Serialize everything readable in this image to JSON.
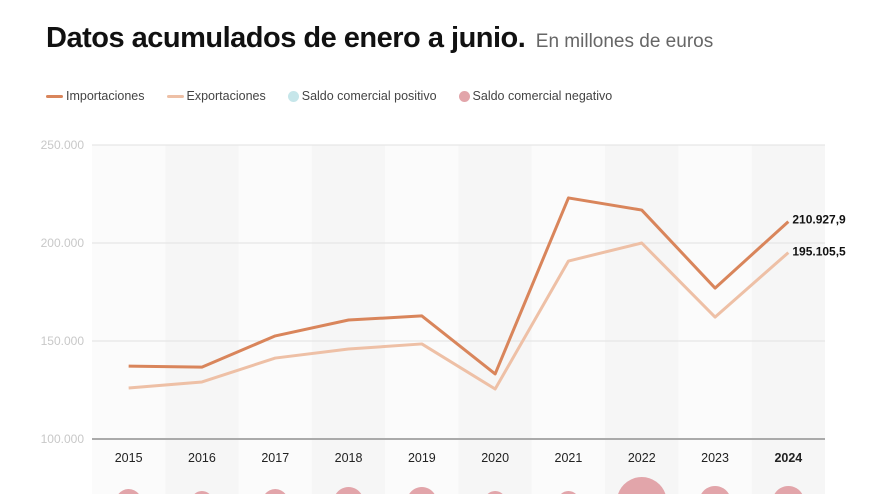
{
  "header": {
    "title": "Datos acumulados de enero a junio.",
    "subtitle": "En millones de euros"
  },
  "legend": [
    {
      "label": "Importaciones",
      "color": "#d9855b",
      "kind": "line"
    },
    {
      "label": "Exportaciones",
      "color": "#eec0a6",
      "kind": "line"
    },
    {
      "label": "Saldo comercial positivo",
      "color": "#c6e6ea",
      "kind": "dot"
    },
    {
      "label": "Saldo comercial negativo",
      "color": "#e2a5aa",
      "kind": "dot"
    }
  ],
  "chart_data": {
    "type": "line",
    "title": "",
    "categories": [
      "2015",
      "2016",
      "2017",
      "2018",
      "2019",
      "2020",
      "2021",
      "2022",
      "2023",
      "2024"
    ],
    "ylim": [
      100000,
      250000
    ],
    "yticks": [
      {
        "v": 100000,
        "label": "100.000"
      },
      {
        "v": 150000,
        "label": "150.000"
      },
      {
        "v": 200000,
        "label": "200.000"
      },
      {
        "v": 250000,
        "label": "250.000"
      }
    ],
    "grid": true,
    "series": [
      {
        "name": "Importaciones",
        "color": "#d9855b",
        "values": [
          137200,
          136700,
          152600,
          160700,
          162800,
          133200,
          223000,
          216800,
          177000,
          210927.9
        ],
        "end_label": "210.927,9"
      },
      {
        "name": "Exportaciones",
        "color": "#eec0a6",
        "values": [
          126000,
          129100,
          141300,
          145900,
          148500,
          125500,
          190800,
          200000,
          162200,
          195105.5
        ],
        "end_label": "195.105,5"
      }
    ],
    "balance_color": "#e2a5aa"
  }
}
